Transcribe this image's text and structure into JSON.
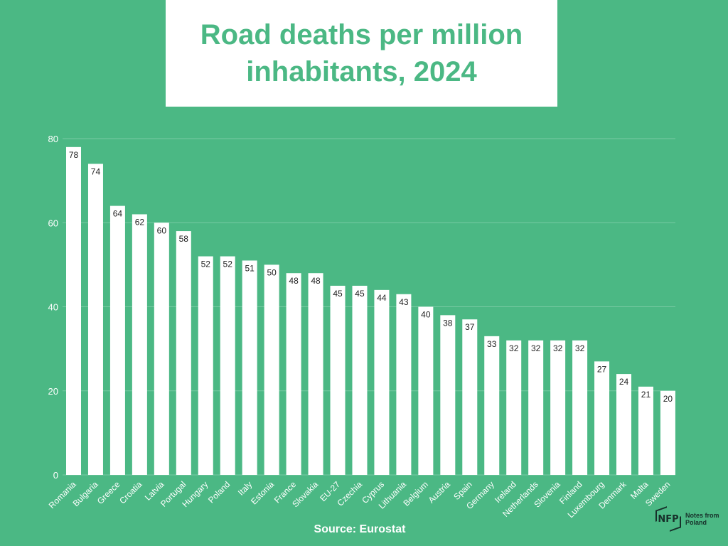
{
  "chart_data": {
    "type": "bar",
    "title": "Road deaths per million inhabitants, 2024",
    "xlabel": "",
    "ylabel": "",
    "ylim": [
      0,
      80
    ],
    "yticks": [
      0,
      20,
      40,
      60,
      80
    ],
    "grid": true,
    "categories": [
      "Romania",
      "Bulgaria",
      "Greece",
      "Croatia",
      "Latvia",
      "Portugal",
      "Hungary",
      "Poland",
      "Italy",
      "Estonia",
      "France",
      "Slovakia",
      "EU-27",
      "Czechia",
      "Cyprus",
      "Lithuania",
      "Belgium",
      "Austria",
      "Spain",
      "Germany",
      "Ireland",
      "Netherlands",
      "Slovenia",
      "Finland",
      "Luxembourg",
      "Denmark",
      "Malta",
      "Sweden"
    ],
    "values": [
      78,
      74,
      64,
      62,
      60,
      58,
      52,
      52,
      51,
      50,
      48,
      48,
      45,
      45,
      44,
      43,
      40,
      38,
      37,
      33,
      32,
      32,
      32,
      32,
      27,
      24,
      21,
      20
    ],
    "colors": {
      "background": "#4bb884",
      "bar": "#ffffff",
      "label": "#222222"
    }
  },
  "source": "Source: Eurostat",
  "logo": {
    "mark": "NFP",
    "text_line1": "Notes from",
    "text_line2": "Poland"
  }
}
